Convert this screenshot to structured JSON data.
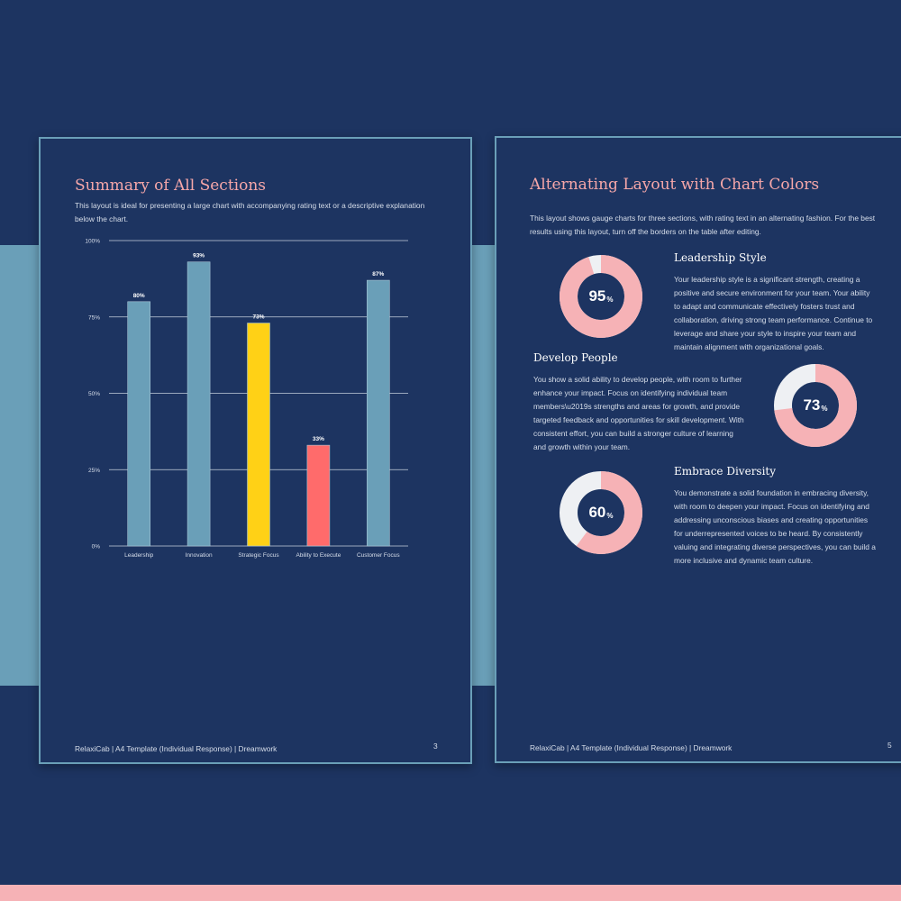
{
  "colors": {
    "background": "#1d3461",
    "accent_band": "#6a9fb8",
    "bottom_strip": "#f6b2b6",
    "title_pink": "#f6a7a9",
    "bar_default": "#6a9fb8",
    "bar_highlight": "#ffd116",
    "bar_low": "#ff6b6b",
    "gauge_fill": "#f6b2b6",
    "gauge_track": "#eef0f3"
  },
  "left_page": {
    "title": "Summary of All Sections",
    "description": "This layout is ideal for presenting a large chart with accompanying rating text or a descriptive explanation below the chart.",
    "footer": "RelaxiCab | A4 Template (Individual Response) | Dreamwork",
    "page_number": "3"
  },
  "chart_data": {
    "type": "bar",
    "title": "",
    "xlabel": "",
    "ylabel": "",
    "categories": [
      "Leadership",
      "Innovation",
      "Strategic Focus",
      "Ability to Execute",
      "Customer Focus"
    ],
    "values": [
      80,
      93,
      73,
      33,
      87
    ],
    "data_labels": [
      "80%",
      "93%",
      "73%",
      "33%",
      "87%"
    ],
    "bar_colors": [
      "#6a9fb8",
      "#6a9fb8",
      "#ffd116",
      "#ff6b6b",
      "#6a9fb8"
    ],
    "ylim": [
      0,
      100
    ],
    "yticks": [
      0,
      25,
      50,
      75,
      100
    ],
    "ytick_labels": [
      "0%",
      "25%",
      "50%",
      "75%",
      "100%"
    ],
    "grid": true
  },
  "right_page": {
    "title": "Alternating Layout with Chart Colors",
    "description": "This layout shows gauge charts for three sections, with rating text in an alternating fashion. For the best results using this layout, turn off the borders on the table after editing.",
    "footer": "RelaxiCab | A4 Template (Individual Response) | Dreamwork",
    "page_number": "5",
    "sections": [
      {
        "heading": "Leadership Style",
        "value": 95,
        "value_text": "95",
        "unit": "%",
        "text": "Your leadership style is a significant strength, creating a positive and secure environment for your team. Your ability to adapt and communicate effectively fosters trust and collaboration, driving strong team performance. Continue to leverage and share your style to inspire your team and maintain alignment with organizational goals."
      },
      {
        "heading": "Develop People",
        "value": 73,
        "value_text": "73",
        "unit": "%",
        "text": "You show a solid ability to develop people, with room to further enhance your impact. Focus on identifying individual team members\\u2019s strengths and areas for growth, and provide targeted feedback and opportunities for skill development. With consistent effort, you can build a stronger culture of learning and growth within your team."
      },
      {
        "heading": "Embrace Diversity",
        "value": 60,
        "value_text": "60",
        "unit": "%",
        "text": "You demonstrate a solid foundation in embracing diversity, with room to deepen your impact. Focus on identifying and addressing unconscious biases and creating opportunities for underrepresented voices to be heard. By consistently valuing and integrating diverse perspectives, you can build a more inclusive and dynamic team culture."
      }
    ]
  }
}
